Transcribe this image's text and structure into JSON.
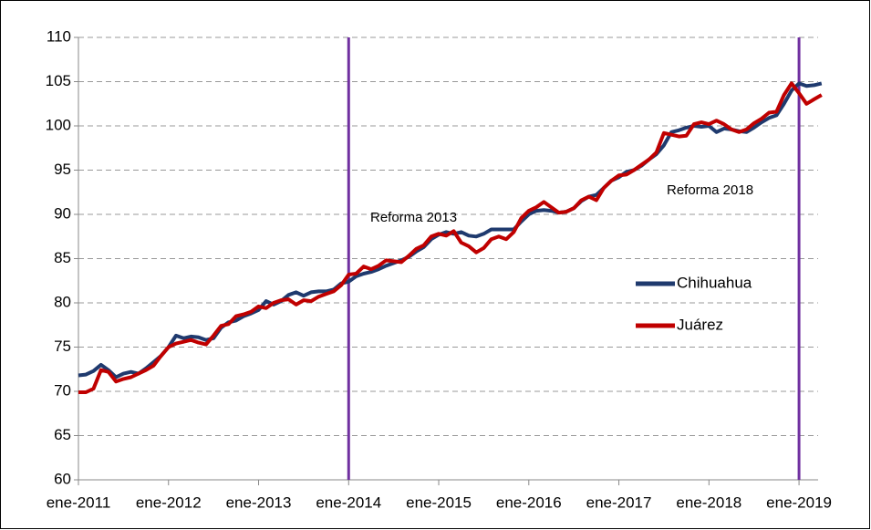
{
  "chart_data": {
    "type": "line",
    "categories": [
      "ene-2011",
      null,
      null,
      null,
      null,
      null,
      null,
      null,
      null,
      null,
      null,
      null,
      "ene-2012",
      null,
      null,
      null,
      null,
      null,
      null,
      null,
      null,
      null,
      null,
      null,
      "ene-2013",
      null,
      null,
      null,
      null,
      null,
      null,
      null,
      null,
      null,
      null,
      null,
      "ene-2014",
      null,
      null,
      null,
      null,
      null,
      null,
      null,
      null,
      null,
      null,
      null,
      "ene-2015",
      null,
      null,
      null,
      null,
      null,
      null,
      null,
      null,
      null,
      null,
      null,
      "ene-2016",
      null,
      null,
      null,
      null,
      null,
      null,
      null,
      null,
      null,
      null,
      null,
      "ene-2017",
      null,
      null,
      null,
      null,
      null,
      null,
      null,
      null,
      null,
      null,
      null,
      "ene-2018",
      null,
      null,
      null,
      null,
      null,
      null,
      null,
      null,
      null,
      null,
      null,
      "ene-2019",
      null,
      null,
      null
    ],
    "series": [
      {
        "name": "Chihuahua",
        "color": "#1f3a6e",
        "values": [
          71.8,
          71.9,
          72.3,
          73.0,
          72.4,
          71.6,
          72.0,
          72.2,
          72.0,
          72.6,
          73.3,
          74.0,
          75.0,
          76.3,
          76.0,
          76.2,
          76.1,
          75.8,
          76.0,
          77.2,
          77.8,
          78.0,
          78.5,
          78.8,
          79.2,
          80.2,
          79.8,
          80.2,
          80.9,
          81.2,
          80.8,
          81.2,
          81.3,
          81.3,
          81.5,
          82.2,
          82.4,
          83.0,
          83.3,
          83.5,
          83.8,
          84.2,
          84.5,
          84.8,
          85.2,
          85.8,
          86.3,
          87.2,
          87.7,
          88.0,
          87.8,
          88.0,
          87.6,
          87.5,
          87.8,
          88.3,
          88.3,
          88.3,
          88.3,
          89.2,
          90.0,
          90.4,
          90.5,
          90.4,
          90.2,
          90.3,
          90.7,
          91.5,
          92.0,
          92.2,
          93.0,
          93.8,
          94.2,
          94.8,
          95.0,
          95.5,
          96.2,
          96.8,
          97.8,
          99.3,
          99.5,
          99.8,
          100.0,
          99.9,
          100.0,
          99.3,
          99.7,
          99.6,
          99.4,
          99.3,
          99.8,
          100.4,
          100.9,
          101.2,
          102.5,
          104.0,
          104.8,
          104.5,
          104.6,
          104.8
        ]
      },
      {
        "name": "Juárez",
        "color": "#c00000",
        "values": [
          69.9,
          69.9,
          70.3,
          72.4,
          72.2,
          71.1,
          71.4,
          71.6,
          72.0,
          72.4,
          72.9,
          74.0,
          75.0,
          75.4,
          75.6,
          75.8,
          75.5,
          75.3,
          76.3,
          77.4,
          77.6,
          78.5,
          78.7,
          79.0,
          79.6,
          79.4,
          80.0,
          80.3,
          80.4,
          79.8,
          80.3,
          80.2,
          80.7,
          81.0,
          81.3,
          82.0,
          83.2,
          83.3,
          84.1,
          83.8,
          84.2,
          84.8,
          84.7,
          84.6,
          85.3,
          86.1,
          86.5,
          87.5,
          87.8,
          87.6,
          88.1,
          86.8,
          86.4,
          85.7,
          86.2,
          87.2,
          87.5,
          87.2,
          88.0,
          89.6,
          90.4,
          90.8,
          91.4,
          90.8,
          90.2,
          90.3,
          90.7,
          91.6,
          92.0,
          91.6,
          93.0,
          93.8,
          94.4,
          94.5,
          95.0,
          95.6,
          96.2,
          97.0,
          99.2,
          99.0,
          98.8,
          98.9,
          100.2,
          100.4,
          100.2,
          100.6,
          100.2,
          99.6,
          99.3,
          99.6,
          100.3,
          100.8,
          101.5,
          101.6,
          103.5,
          104.8,
          103.7,
          102.5,
          103.0,
          103.5
        ]
      }
    ],
    "ylim": [
      60,
      110
    ],
    "yticks": [
      60,
      65,
      70,
      75,
      80,
      85,
      90,
      95,
      100,
      105,
      110
    ],
    "grid": true,
    "legend": "right",
    "annotations": [
      {
        "text": "Reforma 2013",
        "category": 36,
        "color": "#7030a0"
      },
      {
        "text": "Reforma 2018",
        "category": 96,
        "color": "#7030a0"
      }
    ]
  }
}
